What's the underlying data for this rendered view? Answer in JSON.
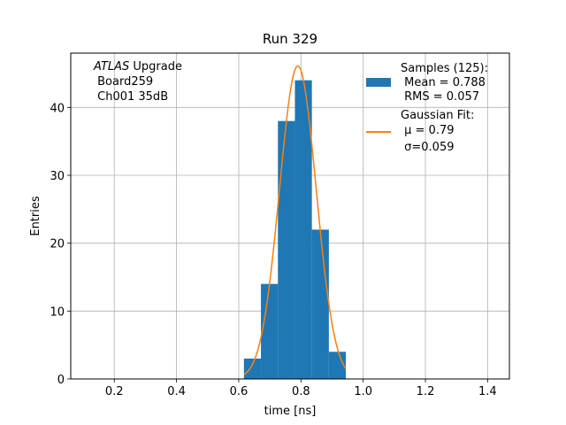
{
  "chart_data": {
    "type": "bar",
    "title": "Run 329",
    "xlabel": "time [ns]",
    "ylabel": "Entries",
    "xlim": [
      0.06,
      1.47
    ],
    "ylim": [
      0,
      48
    ],
    "grid": true,
    "x_ticks": [
      0.2,
      0.4,
      0.6,
      0.8,
      1.0,
      1.2,
      1.4
    ],
    "x_tick_labels": [
      "0.2",
      "0.4",
      "0.6",
      "0.8",
      "1.0",
      "1.2",
      "1.4"
    ],
    "y_ticks": [
      0,
      10,
      20,
      30,
      40
    ],
    "y_tick_labels": [
      "0",
      "10",
      "20",
      "30",
      "40"
    ],
    "histogram": {
      "name": "Samples (125):",
      "color": "#1f77b4",
      "bins": [
        {
          "x0": 0.6167,
          "x1": 0.6713,
          "value": 3
        },
        {
          "x0": 0.6713,
          "x1": 0.7259,
          "value": 14
        },
        {
          "x0": 0.7259,
          "x1": 0.7805,
          "value": 38
        },
        {
          "x0": 0.7805,
          "x1": 0.8351,
          "value": 44
        },
        {
          "x0": 0.8351,
          "x1": 0.8897,
          "value": 22
        },
        {
          "x0": 0.8897,
          "x1": 0.9443,
          "value": 4
        }
      ]
    },
    "fit": {
      "name": "Gaussian Fit:",
      "color": "#ff7f0e",
      "mu": 0.79,
      "sigma": 0.059,
      "amplitude": 46.1,
      "x_range": [
        0.6167,
        0.9443
      ]
    },
    "legend": {
      "placement": "top-right",
      "entries": [
        {
          "lines": [
            "Samples (125):",
            " Mean = 0.788",
            " RMS = 0.057"
          ],
          "marker": "patch",
          "color": "#1f77b4"
        },
        {
          "lines": [
            "Gaussian Fit:",
            " μ = 0.79",
            " σ=0.059"
          ],
          "marker": "line",
          "color": "#ff7f0e"
        }
      ]
    },
    "annotation": {
      "placement": "top-left",
      "lines": [
        "ATLAS Upgrade",
        " Board259",
        " Ch001 35dB"
      ]
    }
  }
}
